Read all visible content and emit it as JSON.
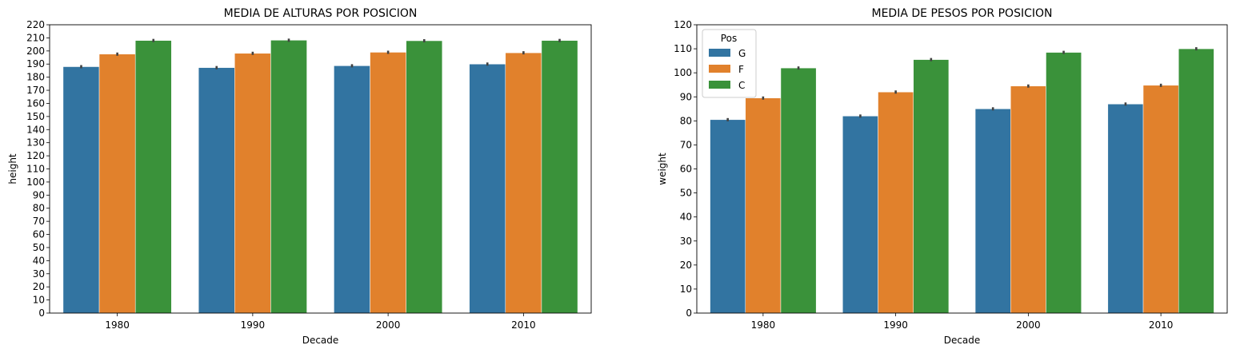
{
  "chart_data": [
    {
      "type": "bar",
      "title": "MEDIA DE ALTURAS POR POSICION",
      "xlabel": "Decade",
      "ylabel": "height",
      "categories": [
        "1980",
        "1990",
        "2000",
        "2010"
      ],
      "ylim": [
        0,
        220
      ],
      "yticks": [
        0,
        10,
        20,
        30,
        40,
        50,
        60,
        70,
        80,
        90,
        100,
        110,
        120,
        130,
        140,
        150,
        160,
        170,
        180,
        190,
        200,
        210,
        220
      ],
      "legend": null,
      "series": [
        {
          "name": "G",
          "color": "#3274a1",
          "values": [
            188,
            187.3,
            188.7,
            190
          ]
        },
        {
          "name": "F",
          "color": "#e1812c",
          "values": [
            197.6,
            198.2,
            199,
            198.6
          ]
        },
        {
          "name": "C",
          "color": "#3a923a",
          "values": [
            208,
            208.2,
            207.8,
            208
          ]
        }
      ],
      "error_bar_color": "#424242"
    },
    {
      "type": "bar",
      "title": "MEDIA DE PESOS POR POSICION",
      "xlabel": "Decade",
      "ylabel": "weight",
      "categories": [
        "1980",
        "1990",
        "2000",
        "2010"
      ],
      "ylim": [
        0,
        120
      ],
      "yticks": [
        0,
        10,
        20,
        30,
        40,
        50,
        60,
        70,
        80,
        90,
        100,
        110,
        120
      ],
      "legend": {
        "title": "Pos",
        "placement": "top-left"
      },
      "series": [
        {
          "name": "G",
          "color": "#3274a1",
          "values": [
            80.5,
            82,
            85,
            87
          ]
        },
        {
          "name": "F",
          "color": "#e1812c",
          "values": [
            89.5,
            92,
            94.5,
            94.8
          ]
        },
        {
          "name": "C",
          "color": "#3a923a",
          "values": [
            102,
            105.5,
            108.5,
            110
          ]
        }
      ],
      "error_bar_color": "#424242"
    }
  ]
}
